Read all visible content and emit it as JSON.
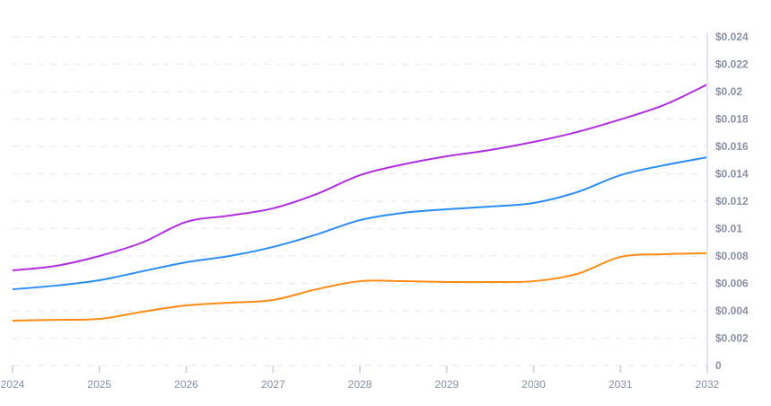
{
  "chart_data": {
    "type": "line",
    "title": "",
    "xlabel": "",
    "ylabel": "",
    "x": [
      2024,
      2024.5,
      2025,
      2025.5,
      2026,
      2026.5,
      2027,
      2027.5,
      2028,
      2028.5,
      2029,
      2029.5,
      2030,
      2030.5,
      2031,
      2031.5,
      2032
    ],
    "x_ticks": [
      "2024",
      "2025",
      "2026",
      "2027",
      "2028",
      "2029",
      "2030",
      "2031",
      "2032"
    ],
    "y_ticks": [
      "0",
      "$0.002",
      "$0.004",
      "$0.006",
      "$0.008",
      "$0.01",
      "$0.012",
      "$0.014",
      "$0.016",
      "$0.018",
      "$0.02",
      "$0.022",
      "$0.024"
    ],
    "xlim": [
      2024,
      2032
    ],
    "ylim": [
      0,
      0.024
    ],
    "y_axis_position": "right",
    "grid": true,
    "series": [
      {
        "color": "#b12ee0",
        "values": [
          0.00695,
          0.00728,
          0.008,
          0.009,
          0.01049,
          0.01095,
          0.01148,
          0.01252,
          0.0139,
          0.01469,
          0.01528,
          0.01574,
          0.01633,
          0.01705,
          0.01797,
          0.01902,
          0.02052
        ]
      },
      {
        "color": "#2b8cf5",
        "values": [
          0.00557,
          0.00584,
          0.00623,
          0.00689,
          0.00754,
          0.008,
          0.00866,
          0.00957,
          0.01062,
          0.01115,
          0.01141,
          0.01161,
          0.01187,
          0.01266,
          0.0139,
          0.01462,
          0.01521
        ]
      },
      {
        "color": "#ff8a14",
        "values": [
          0.00328,
          0.00334,
          0.00341,
          0.00393,
          0.00439,
          0.00459,
          0.00479,
          0.00557,
          0.00616,
          0.00616,
          0.0061,
          0.0061,
          0.00616,
          0.00669,
          0.00793,
          0.00813,
          0.0082
        ]
      }
    ]
  }
}
